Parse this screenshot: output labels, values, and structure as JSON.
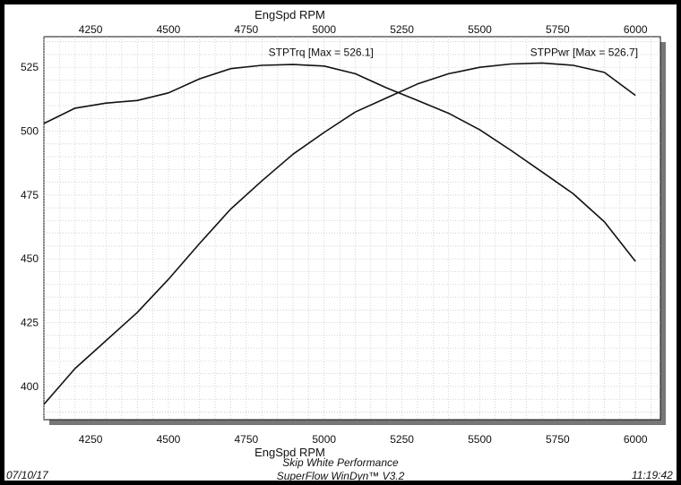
{
  "chart_data": {
    "type": "line",
    "title": "",
    "xlabel": "EngSpd RPM",
    "ylabel": "",
    "xlim": [
      4100,
      6080
    ],
    "ylim": [
      387,
      537
    ],
    "xticks": [
      4250,
      4500,
      4750,
      5000,
      5250,
      5500,
      5750,
      6000
    ],
    "yticks": [
      400,
      425,
      450,
      475,
      500,
      525
    ],
    "x_tick_labels": [
      "4250",
      "4500",
      "4750",
      "5000",
      "5250",
      "5500",
      "5750",
      "6000"
    ],
    "y_tick_labels": [
      "400",
      "425",
      "450",
      "475",
      "500",
      "525"
    ],
    "grid": true,
    "series": [
      {
        "name": "STPTrq [Max = 526.1]",
        "x": [
          4100,
          4200,
          4300,
          4400,
          4500,
          4600,
          4700,
          4800,
          4900,
          5000,
          5100,
          5200,
          5300,
          5400,
          5500,
          5600,
          5700,
          5800,
          5900,
          6000
        ],
        "values": [
          503,
          509,
          511,
          512,
          515,
          520.5,
          524.5,
          525.8,
          526.1,
          525.5,
          522.5,
          517,
          512,
          507,
          500.5,
          492.5,
          484,
          475.5,
          464.5,
          449
        ]
      },
      {
        "name": "STPPwr [Max = 526.7]",
        "x": [
          4100,
          4200,
          4300,
          4400,
          4500,
          4600,
          4700,
          4800,
          4900,
          5000,
          5100,
          5200,
          5300,
          5400,
          5500,
          5600,
          5700,
          5800,
          5900,
          6000
        ],
        "values": [
          393,
          407,
          418,
          429,
          442,
          456,
          469.5,
          480.5,
          491,
          499.5,
          507.5,
          513,
          518.5,
          522.5,
          525,
          526.3,
          526.7,
          525.8,
          523,
          514
        ]
      }
    ]
  },
  "footer": {
    "date": "07/10/17",
    "company": "Skip White Performance",
    "software": "SuperFlow WinDyn™ V3.2",
    "time": "11:19:42"
  }
}
